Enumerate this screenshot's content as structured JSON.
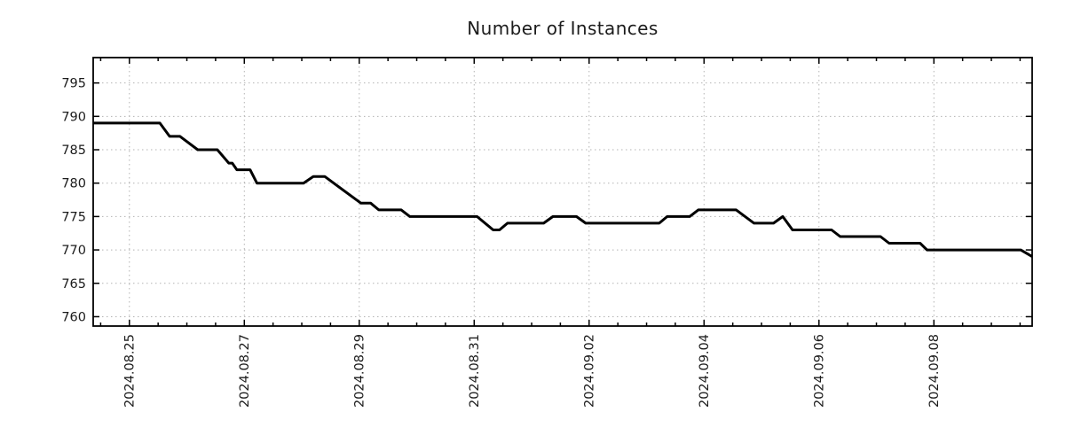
{
  "page": {
    "background": "#ffffff"
  },
  "chart_data": {
    "type": "line",
    "title": "Number of Instances",
    "xlabel": "",
    "ylabel": "",
    "legend": "none",
    "grid": "dotted major gridlines both axes",
    "line_color": "#000000",
    "line_width": 3,
    "x_axis_note": "time axis; day 0 = 2024-08-25 00:00, values in days",
    "xlim_days": [
      -0.63,
      15.71
    ],
    "ylim": [
      758.6,
      798.8
    ],
    "yticks": [
      760,
      765,
      770,
      775,
      780,
      785,
      790,
      795
    ],
    "xticks": [
      {
        "day": 0,
        "label": "2024.08.25"
      },
      {
        "day": 2,
        "label": "2024.08.27"
      },
      {
        "day": 4,
        "label": "2024.08.29"
      },
      {
        "day": 6,
        "label": "2024.08.31"
      },
      {
        "day": 8,
        "label": "2024.09.02"
      },
      {
        "day": 10,
        "label": "2024.09.04"
      },
      {
        "day": 12,
        "label": "2024.09.06"
      },
      {
        "day": 14,
        "label": "2024.09.08"
      }
    ],
    "minor_xtick_step_days": 0.5,
    "series": [
      {
        "name": "instances",
        "points": [
          [
            -0.63,
            789
          ],
          [
            0.53,
            789
          ],
          [
            0.7,
            787
          ],
          [
            0.88,
            787
          ],
          [
            1.19,
            785
          ],
          [
            1.53,
            785
          ],
          [
            1.73,
            783
          ],
          [
            1.79,
            783
          ],
          [
            1.87,
            782
          ],
          [
            2.1,
            782
          ],
          [
            2.22,
            780
          ],
          [
            3.03,
            780
          ],
          [
            3.2,
            781
          ],
          [
            3.4,
            781
          ],
          [
            4.03,
            777
          ],
          [
            4.2,
            777
          ],
          [
            4.34,
            776
          ],
          [
            4.73,
            776
          ],
          [
            4.88,
            775
          ],
          [
            6.05,
            775
          ],
          [
            6.33,
            773
          ],
          [
            6.44,
            773
          ],
          [
            6.58,
            774
          ],
          [
            7.21,
            774
          ],
          [
            7.37,
            775
          ],
          [
            7.78,
            775
          ],
          [
            7.94,
            774
          ],
          [
            9.22,
            774
          ],
          [
            9.36,
            775
          ],
          [
            9.75,
            775
          ],
          [
            9.9,
            776
          ],
          [
            10.56,
            776
          ],
          [
            10.87,
            774
          ],
          [
            11.21,
            774
          ],
          [
            11.37,
            775
          ],
          [
            11.54,
            773
          ],
          [
            12.22,
            773
          ],
          [
            12.37,
            772
          ],
          [
            13.07,
            772
          ],
          [
            13.22,
            771
          ],
          [
            13.76,
            771
          ],
          [
            13.88,
            770
          ],
          [
            15.51,
            770
          ],
          [
            15.71,
            769
          ]
        ]
      }
    ]
  },
  "colors": {
    "background": "#ffffff",
    "line": "#000000",
    "grid": "#b3b3b3",
    "border": "#000000",
    "text": "#1c1c1c"
  }
}
